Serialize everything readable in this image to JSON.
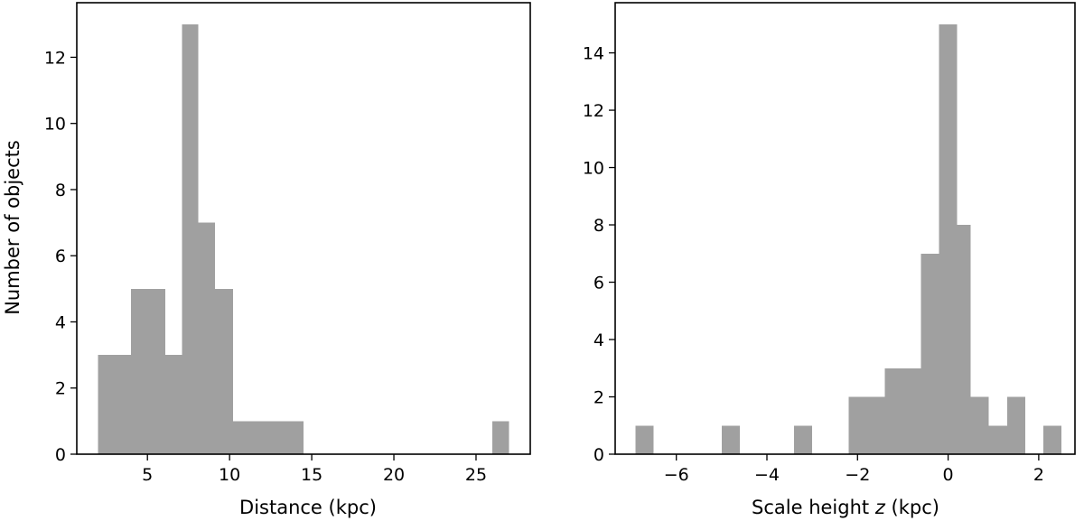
{
  "chart_data": [
    {
      "type": "histogram",
      "xlabel": "Distance (kpc)",
      "ylabel": "Number of objects",
      "xlim": [
        0.7,
        28.3
      ],
      "ylim": [
        0,
        13.65
      ],
      "xticks": [
        5,
        10,
        15,
        20,
        25
      ],
      "yticks": [
        0,
        2,
        4,
        6,
        8,
        10,
        12
      ],
      "bar_color": "#a0a0a0",
      "bins": [
        {
          "x0": 2.0,
          "x1": 4.0,
          "count": 3
        },
        {
          "x0": 4.0,
          "x1": 6.1,
          "count": 5
        },
        {
          "x0": 6.1,
          "x1": 7.1,
          "count": 3
        },
        {
          "x0": 7.1,
          "x1": 8.1,
          "count": 13
        },
        {
          "x0": 8.1,
          "x1": 9.1,
          "count": 7
        },
        {
          "x0": 9.1,
          "x1": 10.2,
          "count": 5
        },
        {
          "x0": 10.2,
          "x1": 14.5,
          "count": 1
        },
        {
          "x0": 26.0,
          "x1": 27.0,
          "count": 1
        }
      ]
    },
    {
      "type": "histogram",
      "xlabel": "Scale height",
      "xlabel_italic": "z",
      "xlabel_unit": "(kpc)",
      "ylabel": "",
      "xlim": [
        -7.35,
        2.8
      ],
      "ylim": [
        0,
        15.75
      ],
      "xticks": [
        -6,
        -4,
        -2,
        0,
        2
      ],
      "xtick_labels": [
        "−6",
        "−4",
        "−2",
        "0",
        "2"
      ],
      "yticks": [
        0,
        2,
        4,
        6,
        8,
        10,
        12,
        14
      ],
      "bar_color": "#a0a0a0",
      "bins": [
        {
          "x0": -6.9,
          "x1": -6.5,
          "count": 1
        },
        {
          "x0": -5.0,
          "x1": -4.6,
          "count": 1
        },
        {
          "x0": -3.4,
          "x1": -3.0,
          "count": 1
        },
        {
          "x0": -2.2,
          "x1": -1.8,
          "count": 2
        },
        {
          "x0": -1.8,
          "x1": -1.4,
          "count": 2
        },
        {
          "x0": -1.4,
          "x1": -0.6,
          "count": 3
        },
        {
          "x0": -0.6,
          "x1": -0.2,
          "count": 7
        },
        {
          "x0": -0.2,
          "x1": 0.2,
          "count": 15
        },
        {
          "x0": 0.2,
          "x1": 0.5,
          "count": 8
        },
        {
          "x0": 0.5,
          "x1": 0.9,
          "count": 2
        },
        {
          "x0": 0.9,
          "x1": 1.3,
          "count": 1
        },
        {
          "x0": 1.3,
          "x1": 1.7,
          "count": 2
        },
        {
          "x0": 2.1,
          "x1": 2.5,
          "count": 1
        }
      ]
    }
  ]
}
